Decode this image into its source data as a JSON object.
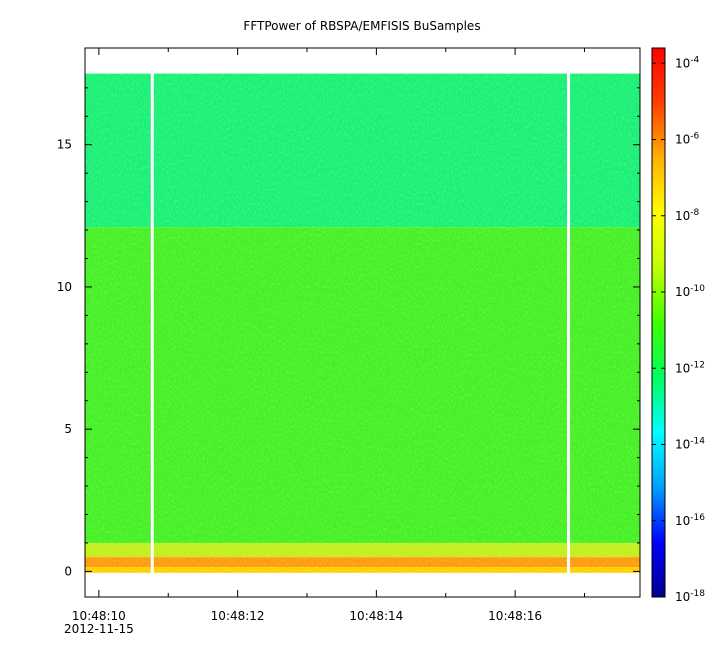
{
  "chart_data": {
    "type": "heatmap",
    "title": "FFTPower of RBSPA/EMFISIS  BuSamples",
    "xlabel": "",
    "ylabel": "",
    "x_ticks": [
      {
        "value": 0,
        "label": "10:48:10",
        "sublabel": "2012-11-15"
      },
      {
        "value": 2,
        "label": "10:48:12",
        "sublabel": ""
      },
      {
        "value": 4,
        "label": "10:48:14",
        "sublabel": ""
      },
      {
        "value": 6,
        "label": "10:48:16",
        "sublabel": ""
      }
    ],
    "x_minor_ticks": [
      1,
      3,
      5,
      7
    ],
    "xlim": [
      -0.2,
      7.8
    ],
    "y_ticks": [
      0,
      5,
      10,
      15
    ],
    "ylim": [
      -0.9,
      18.4
    ],
    "data_top": 17.5,
    "colorbar": {
      "scale": "log",
      "range_exponent": [
        -18,
        -3.6
      ],
      "tick_labels": [
        {
          "exp": -4,
          "label": "10",
          "sup": "-4"
        },
        {
          "exp": -6,
          "label": "10",
          "sup": "-6"
        },
        {
          "exp": -8,
          "label": "10",
          "sup": "-8"
        },
        {
          "exp": -10,
          "label": "10",
          "sup": "-10"
        },
        {
          "exp": -12,
          "label": "10",
          "sup": "-12"
        },
        {
          "exp": -14,
          "label": "10",
          "sup": "-14"
        },
        {
          "exp": -16,
          "label": "10",
          "sup": "-16"
        },
        {
          "exp": -18,
          "label": "10",
          "sup": "-18"
        }
      ],
      "colormap": [
        "#00008f",
        "#0000ff",
        "#00a0ff",
        "#00ffff",
        "#00ff60",
        "#40ff00",
        "#c0ff00",
        "#ffff00",
        "#ffb000",
        "#ff4000",
        "#ff0000"
      ]
    },
    "gaps": [
      0.77,
      6.77
    ],
    "bands": [
      {
        "from": 12.1,
        "to": 17.5,
        "level": -13.0,
        "color": "#18f07a"
      },
      {
        "from": 1.0,
        "to": 12.1,
        "level": -10.5,
        "color": "#44f02a"
      },
      {
        "from": 0.5,
        "to": 1.0,
        "level": -9.0,
        "color": "#c0f020"
      },
      {
        "from": 0.15,
        "to": 0.5,
        "level": -7.0,
        "color": "#ff9a10"
      },
      {
        "from": -0.05,
        "to": 0.15,
        "level": -8.0,
        "color": "#ffd000"
      }
    ]
  }
}
